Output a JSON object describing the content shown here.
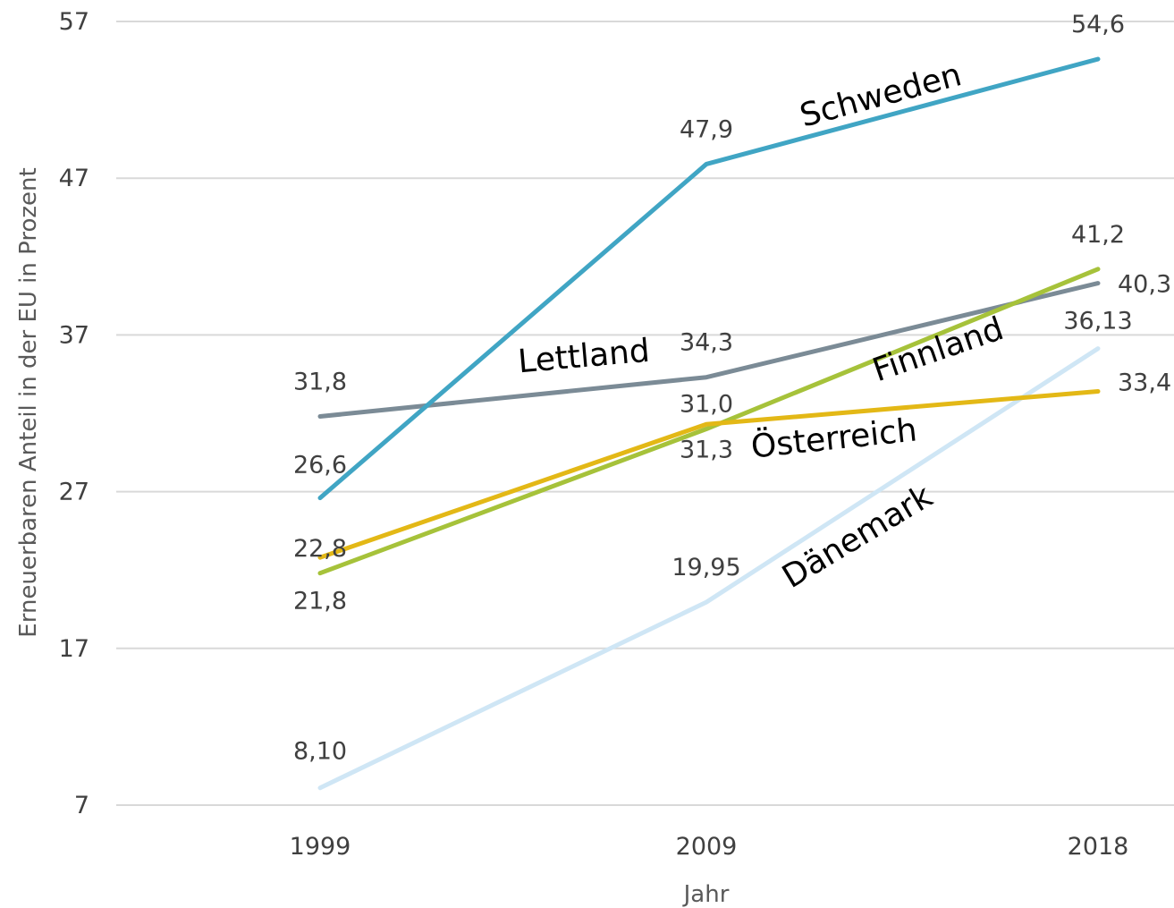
{
  "chart_data": {
    "type": "line",
    "categories": [
      "1999",
      "2009",
      "2018"
    ],
    "xlabel": "Jahr",
    "ylabel": "Erneuerbaren Anteil in der EU in Prozent",
    "ylim": [
      7,
      57
    ],
    "yticks": [
      "7",
      "17",
      "27",
      "37",
      "47",
      "57"
    ],
    "grid": true,
    "series": [
      {
        "name": "Schweden",
        "color": "#40a5c4",
        "values": [
          26.6,
          47.9,
          54.6
        ],
        "labels": [
          "26,6",
          "47,9",
          "54,6"
        ]
      },
      {
        "name": "Lettland",
        "color": "#7b8b96",
        "values": [
          31.8,
          34.3,
          40.3
        ],
        "labels": [
          "31,8",
          "34,3",
          "40,3"
        ]
      },
      {
        "name": "Finnland",
        "color": "#a6c23a",
        "values": [
          21.8,
          31.0,
          41.2
        ],
        "labels": [
          "21,8",
          "31,0",
          "41,2"
        ]
      },
      {
        "name": "Österreich",
        "color": "#e3b816",
        "values": [
          22.8,
          31.3,
          33.4
        ],
        "labels": [
          "22,8",
          "31,3",
          "33,4"
        ]
      },
      {
        "name": "Dänemark",
        "color": "#cfe6f5",
        "values": [
          8.1,
          19.95,
          36.13
        ],
        "labels": [
          "8,10",
          "19,95",
          "36,13"
        ]
      }
    ]
  }
}
